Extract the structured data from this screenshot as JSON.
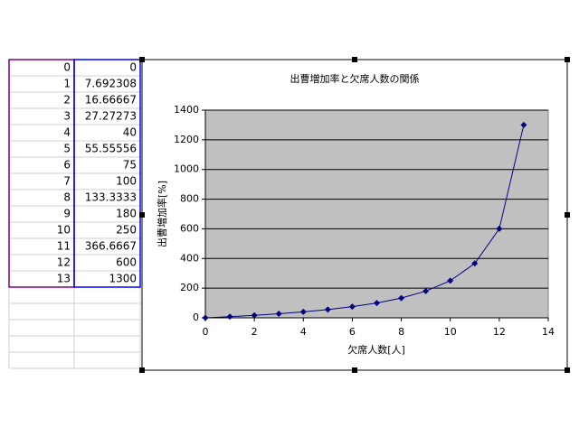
{
  "chart_data": {
    "type": "line",
    "title": "出曹増加率と欠席人数の関係",
    "x_label": "欠席人数[人]",
    "y_label": "出曹増加率[%]",
    "x": [
      0,
      1,
      2,
      3,
      4,
      5,
      6,
      7,
      8,
      9,
      10,
      11,
      12,
      13
    ],
    "series": [
      {
        "color": "#000080",
        "values": [
          0,
          7.692308,
          16.66667,
          27.27273,
          40,
          55.55556,
          75,
          100,
          133.3333,
          180,
          250,
          366.6667,
          600,
          1300
        ]
      }
    ],
    "xlim": [
      0,
      14
    ],
    "xticks": [
      0,
      2,
      4,
      6,
      8,
      10,
      12,
      14
    ],
    "ylim": [
      0,
      1400
    ],
    "yticks": [
      0,
      200,
      400,
      600,
      800,
      1000,
      1200,
      1400
    ],
    "grid": true,
    "plot_background": "#c0c0c0"
  }
}
